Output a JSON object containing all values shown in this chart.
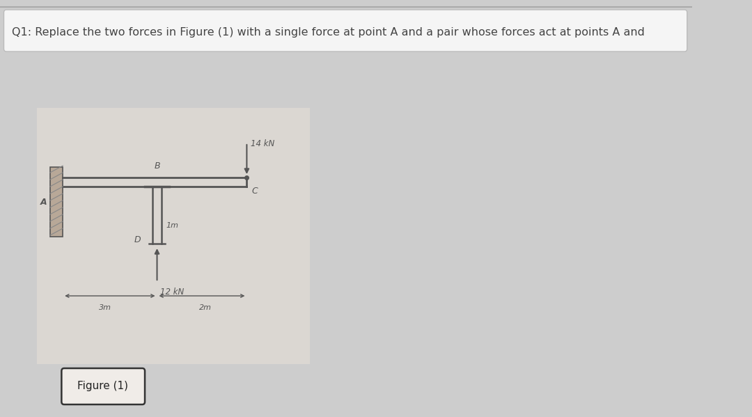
{
  "bg_color": "#cdcdcd",
  "question_text": "Q1: Replace the two forces in Figure (1) with a single force at point A and a pair whose forces act at points A and",
  "question_box_color": "#f5f5f5",
  "question_text_color": "#444444",
  "fig_bg_color": "#dbd7d2",
  "figure_label": "Figure (1)",
  "force_14kN": "14 kN",
  "force_12kN": "12 kN",
  "label_A": "A",
  "label_B": "B",
  "label_C": "C",
  "label_D": "D",
  "dim_3m": "3m",
  "dim_2m": "2m",
  "dim_1m": "1m",
  "line_color": "#555555",
  "wall_color": "#a09080"
}
